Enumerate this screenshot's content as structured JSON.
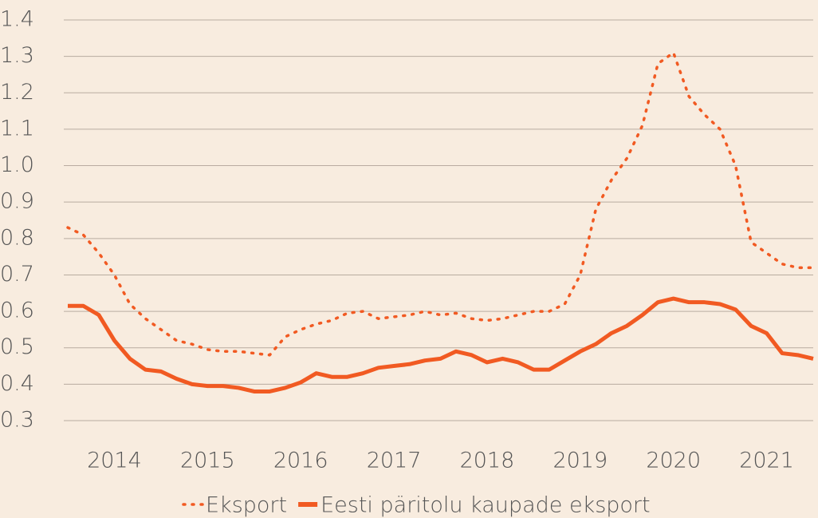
{
  "chart_data": {
    "type": "line",
    "categories": [
      null,
      null,
      null,
      "2014",
      null,
      null,
      null,
      null,
      null,
      "2015",
      null,
      null,
      null,
      null,
      null,
      "2016",
      null,
      null,
      null,
      null,
      null,
      "2017",
      null,
      null,
      null,
      null,
      null,
      "2018",
      null,
      null,
      null,
      null,
      null,
      "2019",
      null,
      null,
      null,
      null,
      null,
      "2020",
      null,
      null,
      null,
      null,
      null,
      "2021",
      null,
      null,
      null
    ],
    "series": [
      {
        "name": "Eksport",
        "color": "#f15a22",
        "dash": "dotted",
        "values": [
          0.83,
          0.81,
          0.76,
          0.7,
          0.62,
          0.58,
          0.55,
          0.52,
          0.51,
          0.495,
          0.49,
          0.49,
          0.485,
          0.48,
          0.53,
          0.55,
          0.565,
          0.575,
          0.595,
          0.6,
          0.58,
          0.585,
          0.59,
          0.6,
          0.59,
          0.595,
          0.58,
          0.575,
          0.58,
          0.59,
          0.6,
          0.6,
          0.62,
          0.7,
          0.88,
          0.96,
          1.02,
          1.11,
          1.28,
          1.31,
          1.19,
          1.14,
          1.1,
          1.0,
          0.79,
          0.76,
          0.73,
          0.72,
          0.72
        ]
      },
      {
        "name": "Eesti päritolu kaupade eksport",
        "color": "#f15a22",
        "dash": "solid",
        "values": [
          0.615,
          0.615,
          0.59,
          0.52,
          0.47,
          0.44,
          0.435,
          0.415,
          0.4,
          0.395,
          0.395,
          0.39,
          0.38,
          0.38,
          0.39,
          0.405,
          0.43,
          0.42,
          0.42,
          0.43,
          0.445,
          0.45,
          0.455,
          0.465,
          0.47,
          0.49,
          0.48,
          0.46,
          0.47,
          0.46,
          0.44,
          0.44,
          0.465,
          0.49,
          0.51,
          0.54,
          0.56,
          0.59,
          0.625,
          0.635,
          0.625,
          0.625,
          0.62,
          0.605,
          0.56,
          0.54,
          0.485,
          0.48,
          0.47
        ]
      }
    ],
    "ylim": [
      0.3,
      1.4
    ],
    "yticks": [
      0.3,
      0.4,
      0.5,
      0.6,
      0.7,
      0.8,
      0.9,
      {
        "value": 1,
        "label": "1.0"
      },
      1.1,
      1.2,
      1.3,
      1.4
    ],
    "grid": true,
    "legend": "bottom"
  }
}
